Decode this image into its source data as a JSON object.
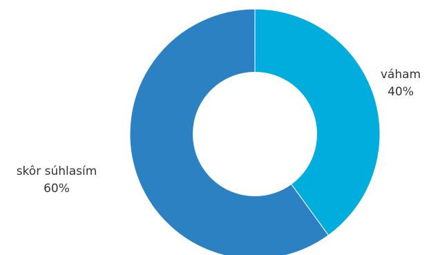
{
  "chart_data": {
    "type": "pie",
    "donut": true,
    "title": "",
    "slices": [
      {
        "label": "váham",
        "value": 40,
        "value_label": "40%",
        "color": "#00ADDD"
      },
      {
        "label": "skôr súhlasím",
        "value": 60,
        "value_label": "60%",
        "color": "#2B81C1"
      }
    ],
    "start": "top",
    "direction": "clockwise",
    "legend": "none"
  }
}
